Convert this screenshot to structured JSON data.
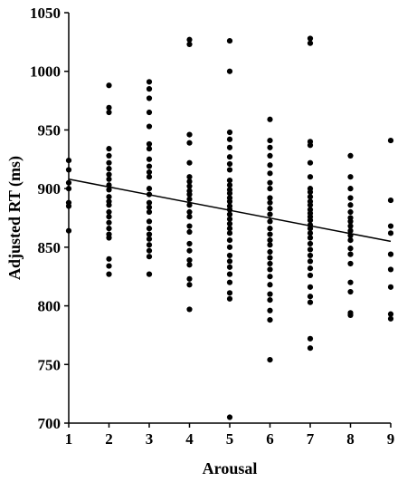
{
  "chart_data": {
    "type": "scatter",
    "title": "",
    "xlabel": "Arousal",
    "ylabel": "Adjusted RT (ms)",
    "xlim": [
      1,
      9
    ],
    "ylim": [
      700,
      1050
    ],
    "x_ticks": [
      "1",
      "2",
      "3",
      "4",
      "5",
      "6",
      "7",
      "8",
      "9"
    ],
    "y_ticks": [
      "700",
      "750",
      "800",
      "850",
      "900",
      "950",
      "1000",
      "1050"
    ],
    "grid": false,
    "legend": "none",
    "marker_color": "#000000",
    "trendline": {
      "x": [
        1,
        9
      ],
      "y": [
        908,
        855
      ]
    },
    "series": [
      {
        "points": [
          [
            1,
            924
          ],
          [
            1,
            916
          ],
          [
            1,
            905
          ],
          [
            1,
            900
          ],
          [
            1,
            888
          ],
          [
            1,
            885
          ],
          [
            1,
            864
          ],
          [
            2,
            988
          ],
          [
            2,
            969
          ],
          [
            2,
            965
          ],
          [
            2,
            934
          ],
          [
            2,
            928
          ],
          [
            2,
            922
          ],
          [
            2,
            917
          ],
          [
            2,
            912
          ],
          [
            2,
            908
          ],
          [
            2,
            903
          ],
          [
            2,
            899
          ],
          [
            2,
            893
          ],
          [
            2,
            889
          ],
          [
            2,
            886
          ],
          [
            2,
            880
          ],
          [
            2,
            876
          ],
          [
            2,
            871
          ],
          [
            2,
            866
          ],
          [
            2,
            861
          ],
          [
            2,
            858
          ],
          [
            2,
            840
          ],
          [
            2,
            834
          ],
          [
            2,
            827
          ],
          [
            3,
            991
          ],
          [
            3,
            985
          ],
          [
            3,
            977
          ],
          [
            3,
            965
          ],
          [
            3,
            953
          ],
          [
            3,
            938
          ],
          [
            3,
            934
          ],
          [
            3,
            925
          ],
          [
            3,
            919
          ],
          [
            3,
            914
          ],
          [
            3,
            910
          ],
          [
            3,
            900
          ],
          [
            3,
            895
          ],
          [
            3,
            888
          ],
          [
            3,
            884
          ],
          [
            3,
            880
          ],
          [
            3,
            872
          ],
          [
            3,
            866
          ],
          [
            3,
            861
          ],
          [
            3,
            857
          ],
          [
            3,
            852
          ],
          [
            3,
            847
          ],
          [
            3,
            842
          ],
          [
            3,
            827
          ],
          [
            4,
            1027
          ],
          [
            4,
            1023
          ],
          [
            4,
            946
          ],
          [
            4,
            939
          ],
          [
            4,
            922
          ],
          [
            4,
            910
          ],
          [
            4,
            906
          ],
          [
            4,
            902
          ],
          [
            4,
            898
          ],
          [
            4,
            895
          ],
          [
            4,
            891
          ],
          [
            4,
            886
          ],
          [
            4,
            880
          ],
          [
            4,
            876
          ],
          [
            4,
            868
          ],
          [
            4,
            863
          ],
          [
            4,
            853
          ],
          [
            4,
            847
          ],
          [
            4,
            839
          ],
          [
            4,
            835
          ],
          [
            4,
            823
          ],
          [
            4,
            818
          ],
          [
            4,
            797
          ],
          [
            5,
            1026
          ],
          [
            5,
            1000
          ],
          [
            5,
            948
          ],
          [
            5,
            942
          ],
          [
            5,
            935
          ],
          [
            5,
            927
          ],
          [
            5,
            921
          ],
          [
            5,
            916
          ],
          [
            5,
            907
          ],
          [
            5,
            903
          ],
          [
            5,
            899
          ],
          [
            5,
            896
          ],
          [
            5,
            892
          ],
          [
            5,
            889
          ],
          [
            5,
            885
          ],
          [
            5,
            882
          ],
          [
            5,
            878
          ],
          [
            5,
            874
          ],
          [
            5,
            870
          ],
          [
            5,
            866
          ],
          [
            5,
            862
          ],
          [
            5,
            856
          ],
          [
            5,
            850
          ],
          [
            5,
            843
          ],
          [
            5,
            838
          ],
          [
            5,
            833
          ],
          [
            5,
            827
          ],
          [
            5,
            820
          ],
          [
            5,
            811
          ],
          [
            5,
            806
          ],
          [
            5,
            705
          ],
          [
            6,
            959
          ],
          [
            6,
            941
          ],
          [
            6,
            935
          ],
          [
            6,
            928
          ],
          [
            6,
            920
          ],
          [
            6,
            913
          ],
          [
            6,
            905
          ],
          [
            6,
            900
          ],
          [
            6,
            892
          ],
          [
            6,
            888
          ],
          [
            6,
            883
          ],
          [
            6,
            878
          ],
          [
            6,
            872
          ],
          [
            6,
            866
          ],
          [
            6,
            861
          ],
          [
            6,
            856
          ],
          [
            6,
            852
          ],
          [
            6,
            846
          ],
          [
            6,
            841
          ],
          [
            6,
            836
          ],
          [
            6,
            831
          ],
          [
            6,
            825
          ],
          [
            6,
            818
          ],
          [
            6,
            810
          ],
          [
            6,
            805
          ],
          [
            6,
            796
          ],
          [
            6,
            788
          ],
          [
            6,
            754
          ],
          [
            7,
            1028
          ],
          [
            7,
            1024
          ],
          [
            7,
            940
          ],
          [
            7,
            937
          ],
          [
            7,
            922
          ],
          [
            7,
            910
          ],
          [
            7,
            900
          ],
          [
            7,
            897
          ],
          [
            7,
            893
          ],
          [
            7,
            889
          ],
          [
            7,
            886
          ],
          [
            7,
            882
          ],
          [
            7,
            879
          ],
          [
            7,
            876
          ],
          [
            7,
            873
          ],
          [
            7,
            869
          ],
          [
            7,
            866
          ],
          [
            7,
            862
          ],
          [
            7,
            858
          ],
          [
            7,
            853
          ],
          [
            7,
            848
          ],
          [
            7,
            843
          ],
          [
            7,
            838
          ],
          [
            7,
            832
          ],
          [
            7,
            826
          ],
          [
            7,
            816
          ],
          [
            7,
            808
          ],
          [
            7,
            803
          ],
          [
            7,
            772
          ],
          [
            7,
            764
          ],
          [
            8,
            928
          ],
          [
            8,
            910
          ],
          [
            8,
            900
          ],
          [
            8,
            892
          ],
          [
            8,
            886
          ],
          [
            8,
            880
          ],
          [
            8,
            875
          ],
          [
            8,
            872
          ],
          [
            8,
            868
          ],
          [
            8,
            864
          ],
          [
            8,
            860
          ],
          [
            8,
            856
          ],
          [
            8,
            849
          ],
          [
            8,
            844
          ],
          [
            8,
            836
          ],
          [
            8,
            820
          ],
          [
            8,
            812
          ],
          [
            8,
            794
          ],
          [
            8,
            792
          ],
          [
            9,
            941
          ],
          [
            9,
            890
          ],
          [
            9,
            868
          ],
          [
            9,
            862
          ],
          [
            9,
            844
          ],
          [
            9,
            831
          ],
          [
            9,
            816
          ],
          [
            9,
            793
          ],
          [
            9,
            789
          ]
        ]
      }
    ]
  }
}
